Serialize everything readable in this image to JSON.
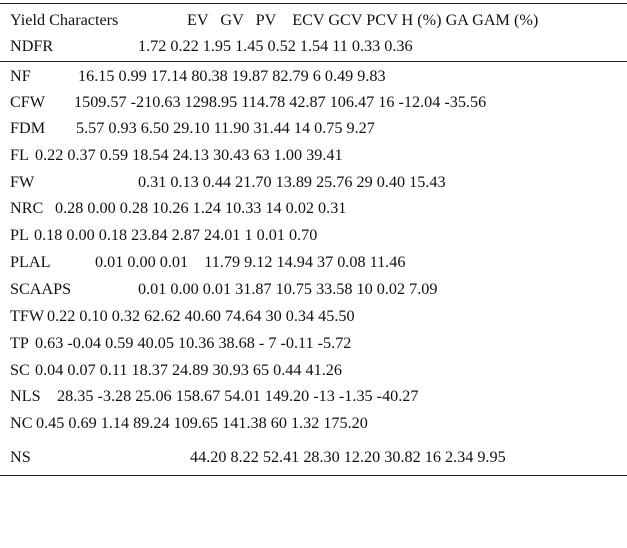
{
  "table": {
    "header": {
      "label": "Yield Characters",
      "columns": "EV   GV   PV    ECV GCV PCV H (%) GA GAM (%)"
    },
    "rows": [
      {
        "name": "NDFR",
        "values": "1.72 0.22 1.95 1.45 0.52 1.54 11 0.33 0.36"
      },
      {
        "name": "NF",
        "values": "16.15 0.99 17.14 80.38 19.87 82.79 6 0.49 9.83"
      },
      {
        "name": "CFW",
        "values": "1509.57 -210.63 1298.95 114.78 42.87 106.47 16 -12.04 -35.56"
      },
      {
        "name": "FDM",
        "values": "5.57 0.93 6.50 29.10 11.90 31.44 14 0.75 9.27"
      },
      {
        "name": "FL",
        "values": "0.22 0.37 0.59 18.54 24.13 30.43 63 1.00 39.41"
      },
      {
        "name": "FW",
        "values": "0.31 0.13 0.44 21.70 13.89 25.76 29 0.40 15.43"
      },
      {
        "name": "NRC",
        "values": "0.28 0.00 0.28 10.26 1.24 10.33 14 0.02 0.31"
      },
      {
        "name": "PL",
        "values": "0.18 0.00 0.18 23.84 2.87 24.01 1 0.01 0.70"
      },
      {
        "name": "PLAL",
        "values": "0.01 0.00 0.01    11.79 9.12 14.94 37 0.08 11.46"
      },
      {
        "name": "SCAAPS",
        "values": "0.01 0.00 0.01 31.87 10.75 33.58 10 0.02 7.09"
      },
      {
        "name": "TFW",
        "values": "0.22 0.10 0.32 62.62 40.60 74.64 30 0.34 45.50"
      },
      {
        "name": "TP",
        "values": "0.63 -0.04 0.59 40.05 10.36 38.68 - 7 -0.11 -5.72"
      },
      {
        "name": "SC",
        "values": "0.04 0.07 0.11 18.37 24.89 30.93 65 0.44 41.26"
      },
      {
        "name": "NLS",
        "values": "28.35 -3.28 25.06 158.67 54.01 149.20 -13 -1.35 -40.27"
      },
      {
        "name": "NC",
        "values": "0.45 0.69 1.14 89.24 109.65 141.38 60 1.32 175.20"
      },
      {
        "name": "NS",
        "values": "44.20 8.22 52.41 28.30 12.20 30.82 16 2.34 9.95"
      }
    ]
  }
}
